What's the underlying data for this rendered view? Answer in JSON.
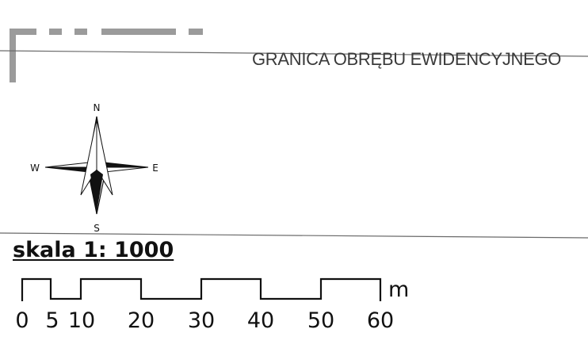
{
  "legend": {
    "boundary_label": "GRANICA OBRĘBU EWIDENCYJNEGO"
  },
  "compass": {
    "north": "N",
    "south": "S",
    "east": "E",
    "west": "W"
  },
  "scale": {
    "title": "skala 1: 1000",
    "unit": "m",
    "ticks": [
      "0",
      "5",
      "10",
      "20",
      "30",
      "40",
      "50",
      "60"
    ]
  },
  "colors": {
    "boundary_gray": "#9b9b9b",
    "line": "#6a6a6a",
    "ink": "#111111"
  }
}
